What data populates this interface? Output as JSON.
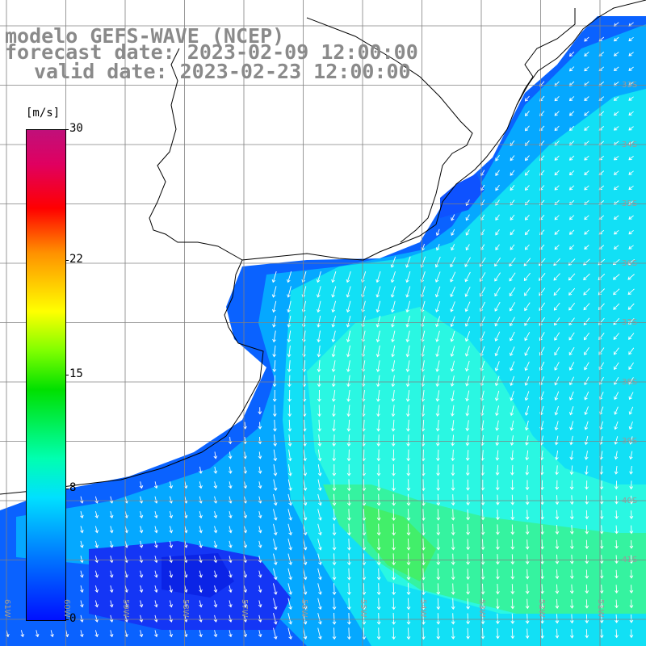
{
  "title": {
    "line1": "modelo GEFS-WAVE (NCEP)",
    "line2": "forecast date: 2023-02-09 12:00:00",
    "line3": "valid date: 2023-02-23 12:00:00"
  },
  "colorbar": {
    "unit": "[m/s]",
    "ticks": [
      "30",
      "22",
      "15",
      "8",
      "0"
    ],
    "tick_values": [
      30,
      22,
      15,
      8,
      0
    ],
    "range": [
      0,
      30
    ]
  },
  "grid": {
    "lat_labels": [
      "33S",
      "34S",
      "35S",
      "36S",
      "37S",
      "38S",
      "39S",
      "40S",
      "41S"
    ],
    "lon_labels": [
      "61W",
      "60W",
      "59W",
      "58W",
      "57W",
      "56W",
      "55W",
      "54W",
      "53W",
      "52W",
      "51W"
    ]
  },
  "colors": {
    "land": "#ffffff",
    "coastline": "#000000",
    "grid_lines": "#808080",
    "arrows": "#ffffff",
    "title_text": "#8a8a8a"
  }
}
